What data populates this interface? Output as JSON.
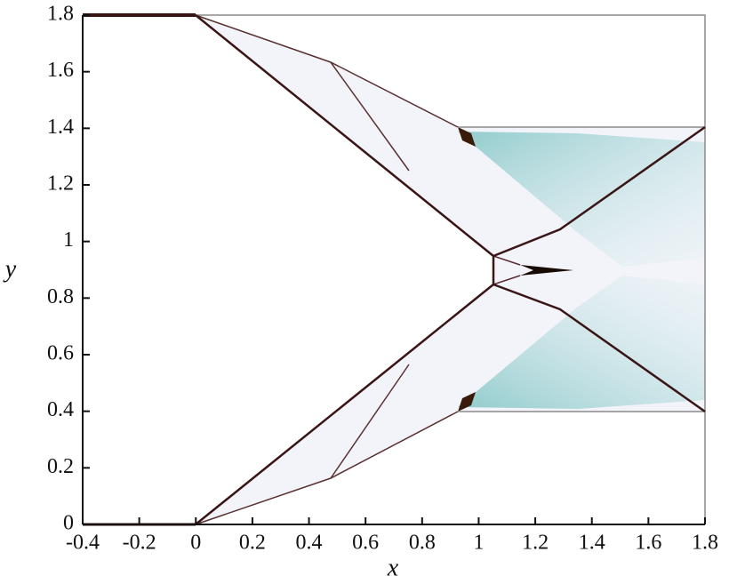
{
  "chart_data": {
    "type": "field",
    "xlabel": "x",
    "ylabel": "y",
    "xlim": [
      -0.4,
      1.8
    ],
    "ylim": [
      0,
      1.8
    ],
    "xticks": [
      -0.4,
      -0.2,
      0,
      0.2,
      0.4,
      0.6,
      0.8,
      1,
      1.2,
      1.4,
      1.6,
      1.8
    ],
    "yticks": [
      0,
      0.2,
      0.4,
      0.6,
      0.8,
      1,
      1.2,
      1.4,
      1.6,
      1.8
    ]
  }
}
